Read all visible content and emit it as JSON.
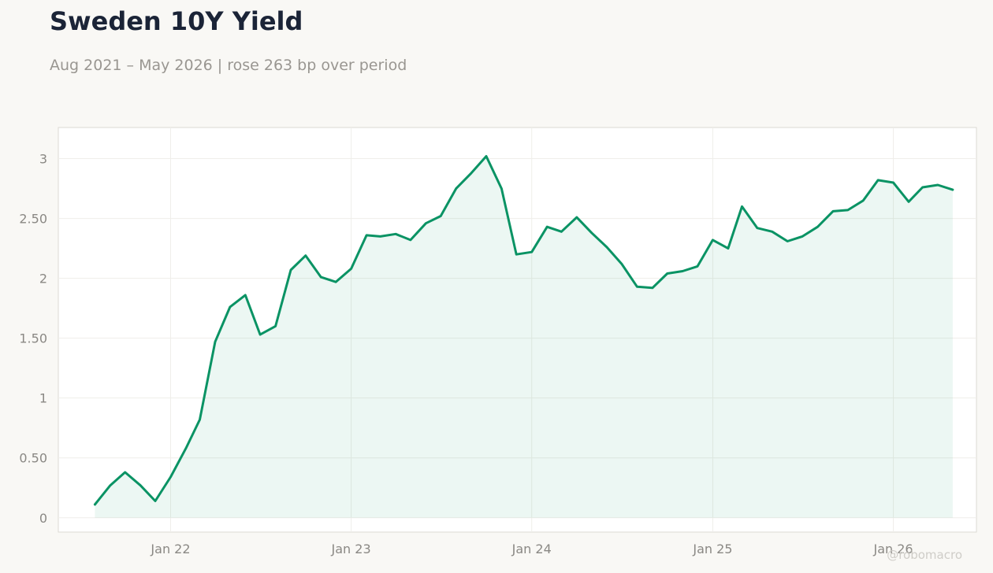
{
  "title": "Sweden 10Y Yield",
  "subtitle": "Aug 2021 – May 2026 | rose 263 bp over period",
  "watermark": "@robomacro",
  "colors": {
    "line": "#0a9364",
    "fill": "#0a9364",
    "background": "#f9f8f5",
    "plot_bg": "#ffffff"
  },
  "chart_data": {
    "type": "area",
    "title": "Sweden 10Y Yield",
    "subtitle": "Aug 2021 – May 2026 | rose 263 bp over period",
    "xlabel": "",
    "ylabel": "",
    "ylim": [
      -0.12,
      3.26
    ],
    "xlim": [
      "2021-05-19",
      "2026-06-18"
    ],
    "grid": true,
    "legend": "none",
    "yticks": [
      0,
      0.5,
      1,
      1.5,
      2,
      2.5,
      3
    ],
    "ytick_labels": [
      "0",
      "0.50",
      "1",
      "1.50",
      "2",
      "2.50",
      "3"
    ],
    "xticks": [
      "2022-01-01",
      "2023-01-01",
      "2024-01-01",
      "2025-01-01",
      "2026-01-01"
    ],
    "xtick_labels": [
      "Jan 22",
      "Jan 23",
      "Jan 24",
      "Jan 25",
      "Jan 26"
    ],
    "series": [
      {
        "x": [
          "2021-08-01",
          "2021-09-01",
          "2021-10-01",
          "2021-11-01",
          "2021-12-01",
          "2022-01-01",
          "2022-02-01",
          "2022-03-01",
          "2022-04-01",
          "2022-05-01",
          "2022-06-01",
          "2022-07-01",
          "2022-08-01",
          "2022-09-01",
          "2022-10-01",
          "2022-11-01",
          "2022-12-01",
          "2023-01-01",
          "2023-02-01",
          "2023-03-01",
          "2023-04-01",
          "2023-05-01",
          "2023-06-01",
          "2023-07-01",
          "2023-08-01",
          "2023-09-01",
          "2023-10-01",
          "2023-11-01",
          "2023-12-01",
          "2024-01-01",
          "2024-02-01",
          "2024-03-01",
          "2024-04-01",
          "2024-05-01",
          "2024-06-01",
          "2024-07-01",
          "2024-08-01",
          "2024-09-01",
          "2024-10-01",
          "2024-11-01",
          "2024-12-01",
          "2025-01-01",
          "2025-02-01",
          "2025-03-01",
          "2025-04-01",
          "2025-05-01",
          "2025-06-01",
          "2025-07-01",
          "2025-08-01",
          "2025-09-01",
          "2025-10-01",
          "2025-11-01",
          "2025-12-01",
          "2026-01-01",
          "2026-02-01",
          "2026-03-01",
          "2026-04-01",
          "2026-05-01"
        ],
        "values": [
          0.11,
          0.27,
          0.38,
          0.27,
          0.14,
          0.34,
          0.58,
          0.82,
          1.47,
          1.76,
          1.86,
          1.53,
          1.6,
          2.07,
          2.19,
          2.01,
          1.97,
          2.08,
          2.36,
          2.35,
          2.37,
          2.32,
          2.46,
          2.52,
          2.75,
          2.88,
          3.02,
          2.75,
          2.2,
          2.22,
          2.43,
          2.39,
          2.51,
          2.38,
          2.26,
          2.12,
          1.93,
          1.92,
          2.04,
          2.06,
          2.1,
          2.32,
          2.25,
          2.6,
          2.42,
          2.39,
          2.31,
          2.35,
          2.43,
          2.56,
          2.57,
          2.65,
          2.82,
          2.8,
          2.64,
          2.76,
          2.78,
          2.74
        ]
      }
    ]
  }
}
